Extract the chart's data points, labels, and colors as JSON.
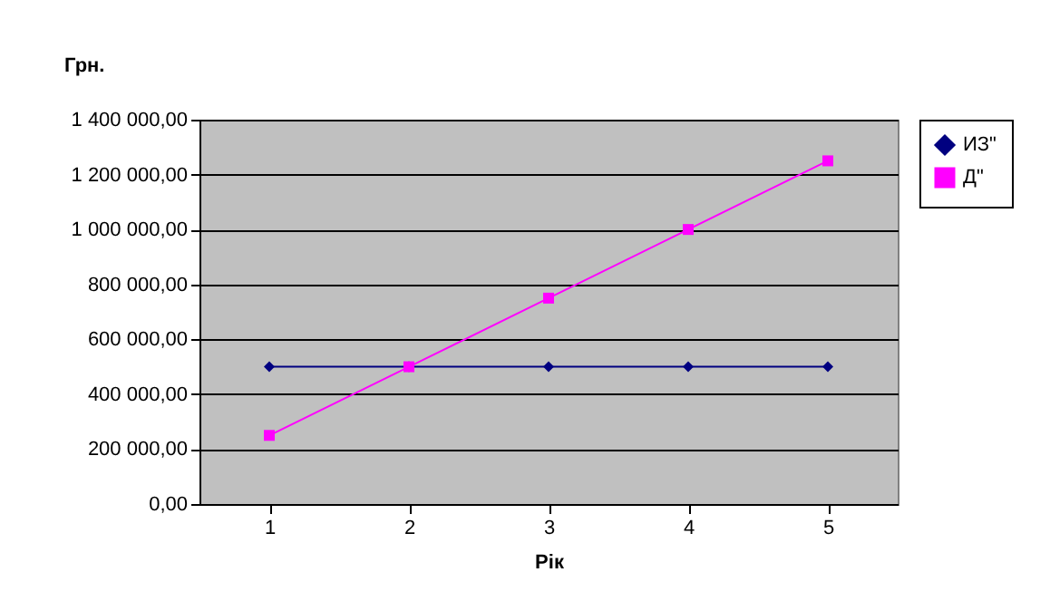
{
  "chart_data": {
    "type": "line",
    "xlabel": "Рік",
    "ylabel": "Грн.",
    "categories": [
      "1",
      "2",
      "3",
      "4",
      "5"
    ],
    "series": [
      {
        "name": "ИЗ\"",
        "color": "#000080",
        "marker": "diamond",
        "values": [
          500000,
          500000,
          500000,
          500000,
          500000
        ]
      },
      {
        "name": "Д\"",
        "color": "#ff00ff",
        "marker": "square",
        "values": [
          250000,
          500000,
          750000,
          1000000,
          1250000
        ]
      }
    ],
    "ylim": [
      0,
      1400000
    ],
    "yticks": [
      {
        "value": 0,
        "label": "0,00"
      },
      {
        "value": 200000,
        "label": "200 000,00"
      },
      {
        "value": 400000,
        "label": "400 000,00"
      },
      {
        "value": 600000,
        "label": "600 000,00"
      },
      {
        "value": 800000,
        "label": "800 000,00"
      },
      {
        "value": 1000000,
        "label": "1 000 000,00"
      },
      {
        "value": 1200000,
        "label": "1 200 000,00"
      },
      {
        "value": 1400000,
        "label": "1 400 000,00"
      }
    ],
    "grid": "y",
    "legend": "right",
    "line_style": "solid"
  }
}
